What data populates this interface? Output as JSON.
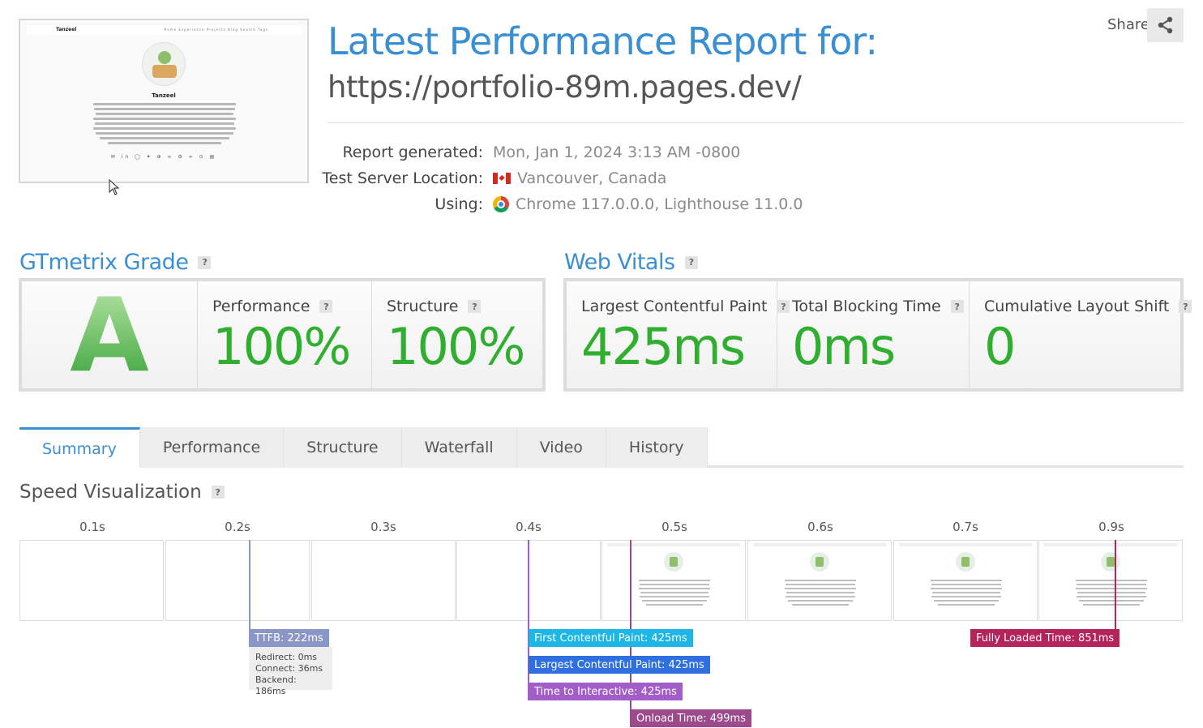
{
  "header": {
    "title": "Latest Performance Report for:",
    "url": "https://portfolio-89m.pages.dev/",
    "share_label": "Share"
  },
  "thumbnail": {
    "site_title": "Tanzeel",
    "nav_links": "Home  Experience  Projects  Blog  Search  Tags",
    "name": "Tanzeel"
  },
  "report": {
    "generated_label": "Report generated:",
    "generated_value": "Mon, Jan 1, 2024 3:13 AM -0800",
    "location_label": "Test Server Location:",
    "location_value": "Vancouver, Canada",
    "using_label": "Using:",
    "using_value": "Chrome 117.0.0.0, Lighthouse 11.0.0"
  },
  "gtmetrix": {
    "title": "GTmetrix Grade",
    "grade": "A",
    "performance_label": "Performance",
    "performance_value": "100%",
    "structure_label": "Structure",
    "structure_value": "100%"
  },
  "web_vitals": {
    "title": "Web Vitals",
    "lcp_label": "Largest Contentful Paint",
    "lcp_value": "425ms",
    "tbt_label": "Total Blocking Time",
    "tbt_value": "0ms",
    "cls_label": "Cumulative Layout Shift",
    "cls_value": "0"
  },
  "tabs": [
    "Summary",
    "Performance",
    "Structure",
    "Waterfall",
    "Video",
    "History"
  ],
  "active_tab": "Summary",
  "speed": {
    "title": "Speed Visualization",
    "frames": [
      "0.1s",
      "0.2s",
      "0.3s",
      "0.4s",
      "0.5s",
      "0.6s",
      "0.7s",
      "0.9s"
    ],
    "ttfb": "TTFB: 222ms",
    "redirect": "Redirect: 0ms",
    "connect": "Connect: 36ms",
    "backend": "Backend: 186ms",
    "fcp": "First Contentful Paint: 425ms",
    "lcp": "Largest Contentful Paint: 425ms",
    "tti": "Time to Interactive: 425ms",
    "onload": "Onload Time: 499ms",
    "fully_loaded": "Fully Loaded Time: 851ms"
  },
  "colors": {
    "accent": "#3a8fd3",
    "grade_green": "#2fae2f",
    "ttfb": "#8a97c6",
    "fcp": "#1eb6e6",
    "lcp": "#2f6fe0",
    "tti": "#a25dc9",
    "onload": "#9c4a8c",
    "fully_loaded": "#b4235a"
  }
}
